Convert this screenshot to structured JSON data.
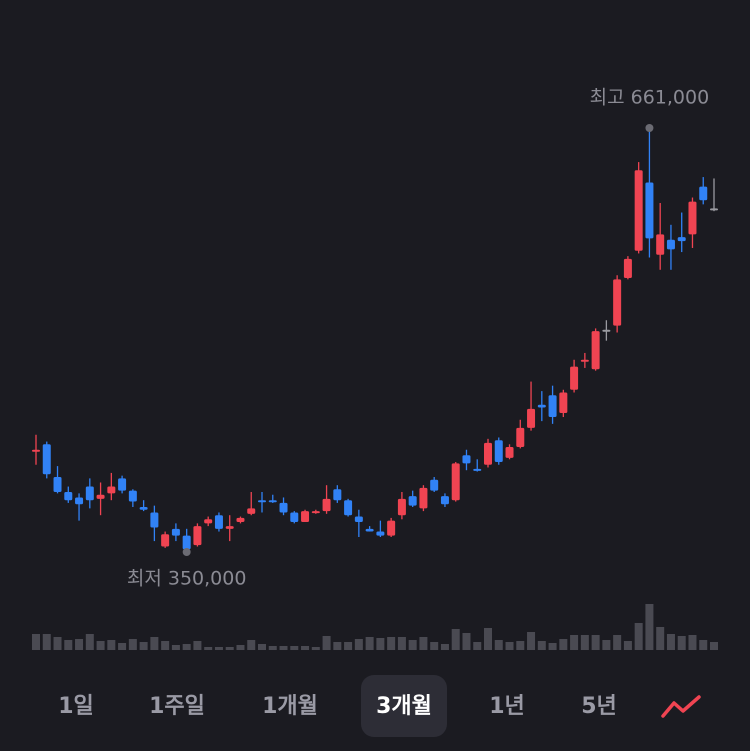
{
  "chart_data": {
    "type": "candlestick",
    "open": [
      424000,
      429000,
      405000,
      394000,
      390000,
      398000,
      389000,
      393000,
      404000,
      395000,
      383000,
      379000,
      354000,
      367000,
      362000,
      355000,
      371000,
      377000,
      367000,
      372000,
      378000,
      388000,
      388000,
      386000,
      379000,
      372000,
      379000,
      380000,
      396000,
      388000,
      376000,
      367000,
      365000,
      362000,
      377000,
      391000,
      382000,
      403000,
      391000,
      388000,
      421000,
      411000,
      414000,
      432000,
      419000,
      427000,
      441000,
      458000,
      465000,
      452000,
      469000,
      490000,
      484000,
      513000,
      516000,
      551000,
      571000,
      621000,
      568000,
      579000,
      581000,
      583000,
      618000,
      602000
    ],
    "high": [
      436000,
      431000,
      413000,
      398000,
      393000,
      404000,
      401000,
      408000,
      406000,
      396000,
      388000,
      384000,
      365000,
      371000,
      367000,
      371000,
      376000,
      379000,
      377000,
      376000,
      394000,
      394000,
      392000,
      390000,
      380000,
      381000,
      381000,
      399000,
      399000,
      389000,
      381000,
      369000,
      373000,
      375000,
      394000,
      395000,
      399000,
      405000,
      393000,
      416000,
      425000,
      418000,
      433000,
      434000,
      429000,
      447000,
      475000,
      468000,
      472000,
      469000,
      491000,
      496000,
      514000,
      520000,
      553000,
      567000,
      636000,
      661000,
      606000,
      590000,
      599000,
      610000,
      625000,
      624000
    ],
    "low": [
      414000,
      404000,
      393000,
      386000,
      373000,
      382000,
      377000,
      388000,
      393000,
      383000,
      380000,
      358000,
      353000,
      358000,
      350000,
      354000,
      369000,
      365000,
      358000,
      371000,
      377000,
      379000,
      386000,
      377000,
      371000,
      372000,
      378000,
      378000,
      386000,
      376000,
      361000,
      365000,
      361000,
      361000,
      374000,
      383000,
      380000,
      394000,
      383000,
      387000,
      410000,
      409000,
      412000,
      414000,
      418000,
      426000,
      439000,
      446000,
      444000,
      449000,
      467000,
      485000,
      483000,
      505000,
      511000,
      550000,
      569000,
      566000,
      557000,
      557000,
      570000,
      573000,
      605000,
      600000
    ],
    "close": [
      425000,
      407000,
      394000,
      388000,
      385000,
      388000,
      392000,
      398000,
      395000,
      387000,
      381000,
      368000,
      363000,
      362000,
      352000,
      369000,
      374000,
      367000,
      369000,
      375000,
      382000,
      387000,
      387000,
      379000,
      372000,
      380000,
      380000,
      389000,
      388000,
      377000,
      372000,
      365000,
      362000,
      373000,
      389000,
      384000,
      397000,
      395000,
      385000,
      415000,
      415000,
      410000,
      430000,
      416000,
      427000,
      441000,
      455000,
      456000,
      449000,
      467000,
      486000,
      491000,
      512000,
      513000,
      550000,
      565000,
      630000,
      580000,
      583000,
      572000,
      578000,
      607000,
      608000,
      602000
    ],
    "volume": [
      16,
      16,
      13,
      10,
      11,
      16,
      9,
      10,
      7,
      11,
      8,
      13,
      9,
      5,
      6,
      9,
      3,
      3,
      3,
      5,
      10,
      6,
      4,
      4,
      4,
      4,
      3,
      14,
      8,
      8,
      11,
      13,
      12,
      13,
      13,
      10,
      13,
      8,
      6,
      21,
      17,
      8,
      22,
      10,
      8,
      9,
      18,
      9,
      7,
      11,
      15,
      15,
      15,
      10,
      15,
      9,
      27,
      46,
      23,
      16,
      14,
      15,
      10,
      8
    ],
    "up_color": "#f04452",
    "down_color": "#3182f6",
    "flat_color": "#9a9aa0",
    "volume_color": "#4a4a52",
    "annotations": [
      {
        "label": "최고 661,000",
        "value": 661000
      },
      {
        "label": "최저 350,000",
        "value": 350000
      }
    ]
  },
  "tabs": {
    "items": [
      "1일",
      "1주일",
      "1개월",
      "3개월",
      "1년",
      "5년"
    ],
    "selected": 3
  }
}
